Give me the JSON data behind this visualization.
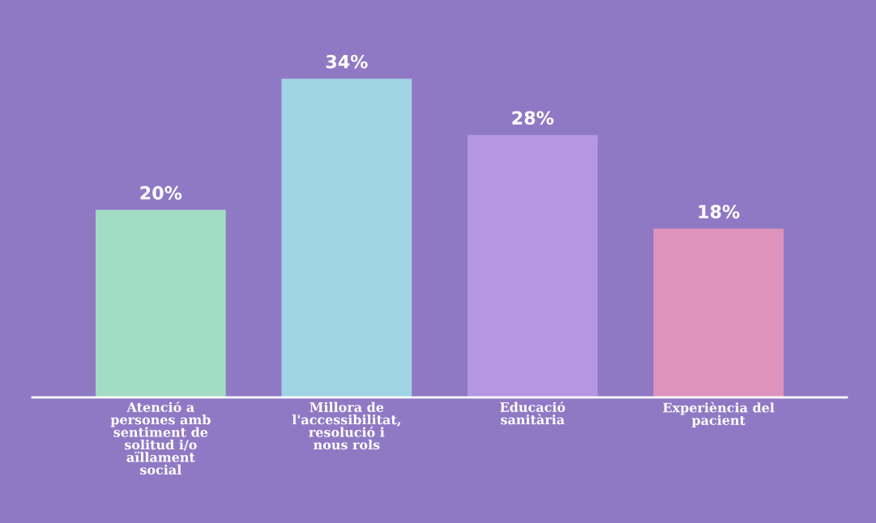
{
  "chart_data": {
    "type": "bar",
    "categories": [
      "Atenció a\npersones amb\nsentiment de\nsolitud i/o\naïllament\nsocial",
      "Millora de\nl'accessibilitat,\nresolució i\nnous rols",
      "Educació\nsanitària",
      "Experiència del\npacient"
    ],
    "values": [
      20,
      34,
      28,
      18
    ],
    "value_labels": [
      "20%",
      "34%",
      "28%",
      "18%"
    ],
    "colors": [
      "#a3dcc4",
      "#a0d4e4",
      "#b596e3",
      "#de93bd"
    ],
    "grid": false,
    "legend": false
  }
}
